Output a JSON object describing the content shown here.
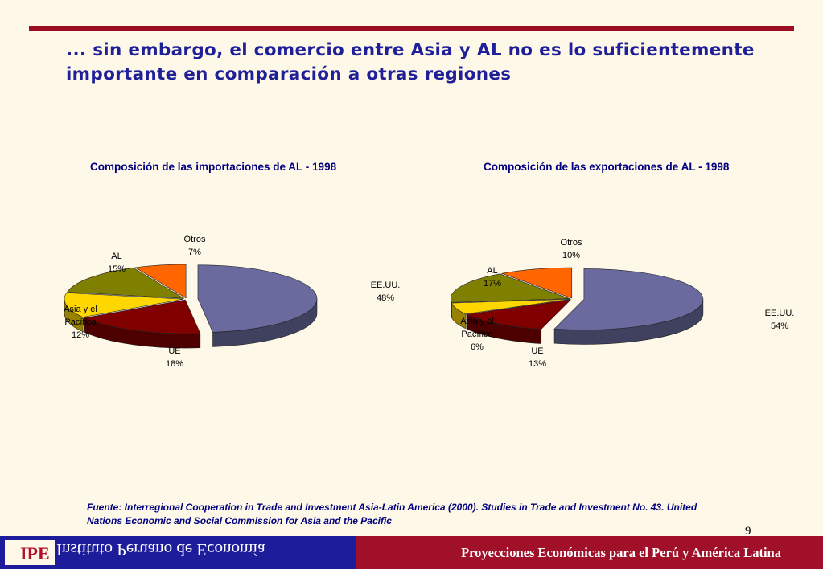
{
  "slide": {
    "title": "... sin embargo, el comercio entre Asia y AL no es lo suficientemente importante en comparación a otras regiones",
    "source": "Fuente: Interregional Cooperation in Trade and Investment Asia-Latin America (2000). Studies in Trade and Investment No. 43. United Nations Economic and Social Commission for Asia and the Pacific",
    "page_number": "9"
  },
  "footer": {
    "logo": "IPE",
    "institution": "Instituto Peruano de Economía",
    "tagline": "Proyecciones Económicas para el Perú y América Latina"
  },
  "chart_data": [
    {
      "type": "pie",
      "title": "Composición de las importaciones de AL - 1998",
      "slices": [
        {
          "name": "EE.UU.",
          "value": 48,
          "label": "48%",
          "color": "#6a6a9e"
        },
        {
          "name": "UE",
          "value": 18,
          "label": "18%",
          "color": "#800000"
        },
        {
          "name": "Asia y el Pacífico",
          "value": 12,
          "label": "12%",
          "color": "#ffd700"
        },
        {
          "name": "AL",
          "value": 15,
          "label": "15%",
          "color": "#808000"
        },
        {
          "name": "Otros",
          "value": 7,
          "label": "7%",
          "color": "#ff6600"
        }
      ]
    },
    {
      "type": "pie",
      "title": "Composición de las exportaciones de AL - 1998",
      "slices": [
        {
          "name": "EE.UU.",
          "value": 54,
          "label": "54%",
          "color": "#6a6a9e"
        },
        {
          "name": "UE",
          "value": 13,
          "label": "13%",
          "color": "#800000"
        },
        {
          "name": "Asia y el Pacífico",
          "value": 6,
          "label": "6%",
          "color": "#ffd700"
        },
        {
          "name": "AL",
          "value": 17,
          "label": "17%",
          "color": "#808000"
        },
        {
          "name": "Otros",
          "value": 10,
          "label": "10%",
          "color": "#ff6600"
        }
      ]
    }
  ]
}
